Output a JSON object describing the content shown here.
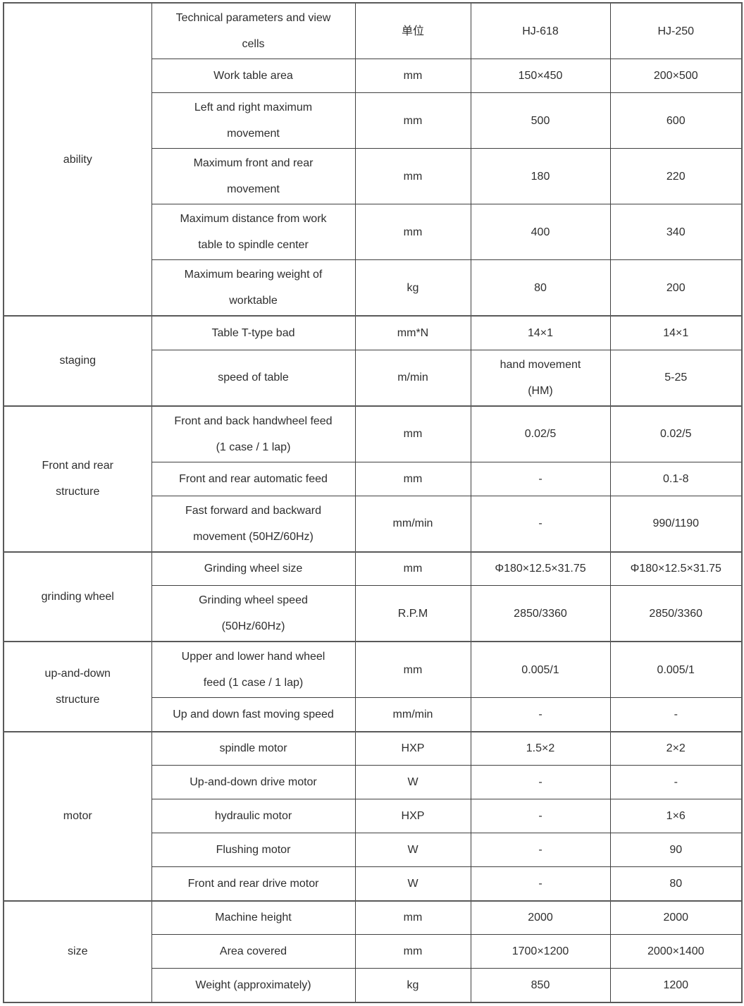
{
  "colors": {
    "background": "#ffffff",
    "border_thin": "#404040",
    "border_thick": "#595959",
    "text": "#2e2e2e"
  },
  "table": {
    "sections": [
      {
        "label": "ability",
        "rows": [
          {
            "header": true,
            "param": "Technical parameters and view\ncells",
            "unit": "单位",
            "hj618": "HJ-618",
            "hj250": "HJ-250"
          },
          {
            "param": "Work table area",
            "unit": "mm",
            "hj618": "150×450",
            "hj250": "200×500"
          },
          {
            "param": "Left and right maximum\nmovement",
            "unit": "mm",
            "hj618": "500",
            "hj250": "600"
          },
          {
            "param": "Maximum front and rear\nmovement",
            "unit": "mm",
            "hj618": "180",
            "hj250": "220"
          },
          {
            "param": "Maximum distance from work\ntable to spindle center",
            "unit": "mm",
            "hj618": "400",
            "hj250": "340"
          },
          {
            "param": "Maximum bearing weight of\nworktable",
            "unit": "kg",
            "hj618": "80",
            "hj250": "200"
          }
        ]
      },
      {
        "label": "staging",
        "rows": [
          {
            "param": "Table T-type bad",
            "unit": "mm*N",
            "hj618": "14×1",
            "hj250": "14×1"
          },
          {
            "param": "speed of table",
            "unit": "m/min",
            "hj618": "hand movement\n(HM)",
            "hj250": "5-25"
          }
        ]
      },
      {
        "label": "Front and rear\nstructure",
        "rows": [
          {
            "param": "Front and back handwheel feed\n(1 case / 1 lap)",
            "unit": "mm",
            "hj618": "0.02/5",
            "hj250": "0.02/5"
          },
          {
            "param": "Front and rear automatic feed",
            "unit": "mm",
            "hj618": "-",
            "hj250": "0.1-8"
          },
          {
            "param": "Fast forward and backward\nmovement (50HZ/60Hz)",
            "unit": "mm/min",
            "hj618": "-",
            "hj250": "990/1190"
          }
        ]
      },
      {
        "label": "grinding wheel",
        "rows": [
          {
            "param": "Grinding wheel size",
            "unit": "mm",
            "hj618": "Φ180×12.5×31.75",
            "hj250": "Φ180×12.5×31.75"
          },
          {
            "param": "Grinding wheel speed\n(50Hz/60Hz)",
            "unit": "R.P.M",
            "hj618": "2850/3360",
            "hj250": "2850/3360"
          }
        ]
      },
      {
        "label": "up-and-down\nstructure",
        "rows": [
          {
            "param": "Upper and lower hand wheel\nfeed (1 case / 1 lap)",
            "unit": "mm",
            "hj618": "0.005/1",
            "hj250": "0.005/1"
          },
          {
            "param": "Up and down fast moving speed",
            "unit": "mm/min",
            "hj618": "-",
            "hj250": "-"
          }
        ]
      },
      {
        "label": "motor",
        "rows": [
          {
            "param": "spindle motor",
            "unit": "HXP",
            "hj618": "1.5×2",
            "hj250": "2×2"
          },
          {
            "param": "Up-and-down drive motor",
            "unit": "W",
            "hj618": "-",
            "hj250": "-"
          },
          {
            "param": "hydraulic motor",
            "unit": "HXP",
            "hj618": "-",
            "hj250": "1×6"
          },
          {
            "param": "Flushing motor",
            "unit": "W",
            "hj618": "-",
            "hj250": "90"
          },
          {
            "param": "Front and rear drive motor",
            "unit": "W",
            "hj618": "-",
            "hj250": "80"
          }
        ]
      },
      {
        "label": "size",
        "rows": [
          {
            "param": "Machine height",
            "unit": "mm",
            "hj618": "2000",
            "hj250": "2000"
          },
          {
            "param": "Area covered",
            "unit": "mm",
            "hj618": "1700×1200",
            "hj250": "2000×1400"
          },
          {
            "param": "Weight (approximately)",
            "unit": "kg",
            "hj618": "850",
            "hj250": "1200"
          }
        ]
      }
    ]
  }
}
